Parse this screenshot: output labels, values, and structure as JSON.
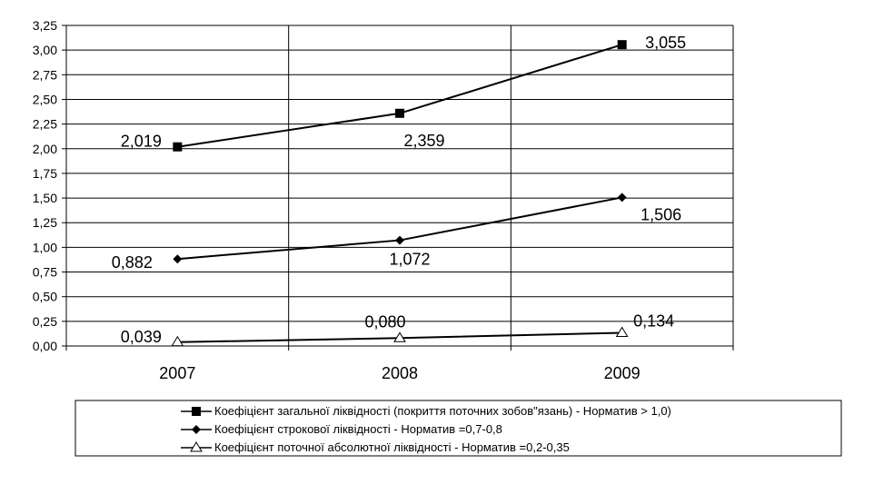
{
  "chart_data": {
    "type": "line",
    "categories": [
      "2007",
      "2008",
      "2009"
    ],
    "ylim": [
      0,
      3.25
    ],
    "yticks": [
      "0,00",
      "0,25",
      "0,50",
      "0,75",
      "1,00",
      "1,25",
      "1,50",
      "1,75",
      "2,00",
      "2,25",
      "2,50",
      "2,75",
      "3,00",
      "3,25"
    ],
    "grid": {
      "horizontal": true,
      "vertical": true
    },
    "legend_position": "bottom",
    "series": [
      {
        "name": "Коефіцієнт загальної ліквідності (покриття поточних зобов\"язань) - Норматив > 1,0)",
        "marker": "square",
        "values": [
          2.019,
          2.359,
          3.055
        ],
        "labels": [
          "2,019",
          "2,359",
          "3,055"
        ]
      },
      {
        "name": "Коефіцієнт строкової ліквідності - Норматив =0,7-0,8",
        "marker": "diamond",
        "values": [
          0.882,
          1.072,
          1.506
        ],
        "labels": [
          "0,882",
          "1,072",
          "1,506"
        ]
      },
      {
        "name": "Коефіцієнт поточної абсолютної ліквідності - Норматив =0,2-0,35",
        "marker": "triangle-open",
        "values": [
          0.039,
          0.08,
          0.134
        ],
        "labels": [
          "0,039",
          "0,080",
          "0,134"
        ]
      }
    ]
  }
}
